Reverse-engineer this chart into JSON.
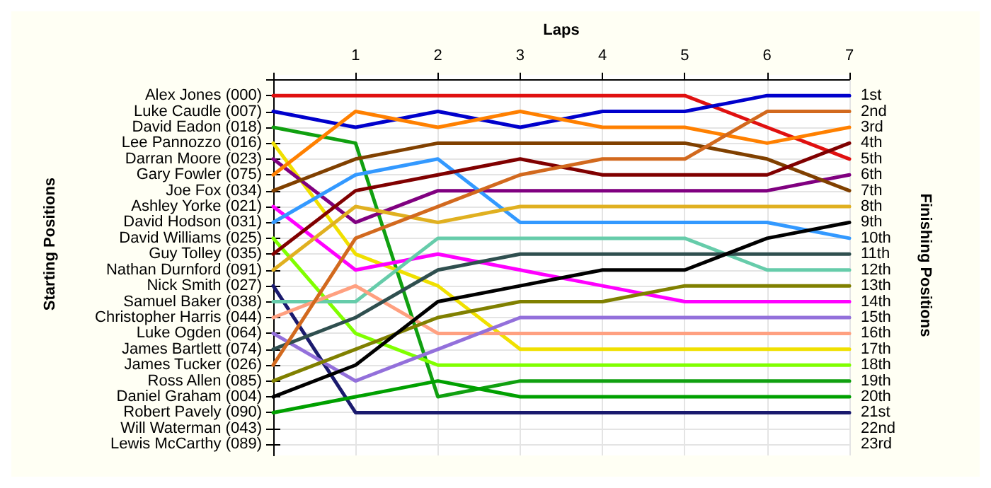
{
  "chart_data": {
    "type": "line",
    "xlabel": "Laps",
    "ylabel": "Finishing Positions",
    "annotations": [
      "Starting Positions",
      "Alex Jones (000)",
      "Luke Caudle (007)",
      "David Eadon (018)",
      "Lee Pannozzo (016)",
      "Darran Moore (023)",
      "Gary Fowler (075)",
      "Joe Fox (034)",
      "Ashley Yorke (021)",
      "David Hodson (031)",
      "David Williams (025)",
      "Guy Tolley (035)",
      "Nathan Durnford (091)",
      "Nick Smith (027)",
      "Samuel Baker (038)",
      "Christopher Harris (044)",
      "Luke Ogden (064)",
      "James Bartlett (074)",
      "James Tucker (026)",
      "Ross Allen (085)",
      "Daniel Graham (004)",
      "Robert Pavely (090)",
      "Will Waterman (043)",
      "Lewis McCarthy (089)"
    ],
    "x": [
      0,
      1,
      2,
      3,
      4,
      5,
      6,
      7
    ],
    "xlim": [
      0,
      7
    ],
    "xticks": [
      {
        "value": 0,
        "label": null
      },
      1,
      2,
      3,
      4,
      5,
      6,
      7
    ],
    "ylim": [
      23.7,
      -0.3
    ],
    "yticks": [
      {
        "value": 0,
        "label": null
      },
      {
        "value": 1,
        "label": "1st"
      },
      {
        "value": 2,
        "label": "2nd"
      },
      {
        "value": 3,
        "label": "3rd"
      },
      {
        "value": 4,
        "label": "4th"
      },
      {
        "value": 5,
        "label": "5th"
      },
      {
        "value": 6,
        "label": "6th"
      },
      {
        "value": 7,
        "label": "7th"
      },
      {
        "value": 8,
        "label": "8th"
      },
      {
        "value": 9,
        "label": "9th"
      },
      {
        "value": 10,
        "label": "10th"
      },
      {
        "value": 11,
        "label": "11th"
      },
      {
        "value": 12,
        "label": "12th"
      },
      {
        "value": 13,
        "label": "13th"
      },
      {
        "value": 14,
        "label": "14th"
      },
      {
        "value": 15,
        "label": "15th"
      },
      {
        "value": 16,
        "label": "16th"
      },
      {
        "value": 17,
        "label": "17th"
      },
      {
        "value": 18,
        "label": "18th"
      },
      {
        "value": 19,
        "label": "19th"
      },
      {
        "value": 20,
        "label": "20th"
      },
      {
        "value": 21,
        "label": "21st"
      },
      {
        "value": 22,
        "label": "22nd"
      },
      {
        "value": 23,
        "label": "23rd"
      }
    ],
    "grid": true,
    "marker": "none",
    "line_style": "solid",
    "series": [
      {
        "color": "#e01010",
        "values": [
          1,
          1,
          1,
          1,
          1,
          1,
          3,
          5
        ]
      },
      {
        "color": "#0000cc",
        "values": [
          2,
          3,
          2,
          3,
          2,
          2,
          1,
          1
        ]
      },
      {
        "color": "#10a010",
        "values": [
          3,
          4,
          20,
          19,
          19,
          19,
          19,
          19
        ]
      },
      {
        "color": "#f0e000",
        "values": [
          4,
          11,
          13,
          17,
          17,
          17,
          17,
          17
        ]
      },
      {
        "color": "#800080",
        "values": [
          5,
          9,
          7,
          7,
          7,
          7,
          7,
          6
        ]
      },
      {
        "color": "#ff8000",
        "values": [
          6,
          2,
          3,
          2,
          3,
          3,
          4,
          3
        ]
      },
      {
        "color": "#804000",
        "values": [
          7,
          5,
          4,
          4,
          4,
          4,
          5,
          7
        ]
      },
      {
        "color": "#ff00ff",
        "values": [
          8,
          12,
          11,
          12,
          13,
          14,
          14,
          14
        ]
      },
      {
        "color": "#3399ff",
        "values": [
          9,
          6,
          5,
          9,
          9,
          9,
          9,
          10
        ]
      },
      {
        "color": "#80ff00",
        "values": [
          10,
          16,
          18,
          18,
          18,
          18,
          18,
          18
        ]
      },
      {
        "color": "#800000",
        "values": [
          11,
          7,
          6,
          5,
          6,
          6,
          6,
          4
        ]
      },
      {
        "color": "#e0b020",
        "values": [
          12,
          8,
          9,
          8,
          8,
          8,
          8,
          8
        ]
      },
      {
        "color": "#1a1a6e",
        "values": [
          13,
          21,
          21,
          21,
          21,
          21,
          21,
          21
        ]
      },
      {
        "color": "#66ccaa",
        "values": [
          14,
          14,
          10,
          10,
          10,
          10,
          12,
          12
        ]
      },
      {
        "color": "#ffa080",
        "values": [
          15,
          13,
          16,
          16,
          16,
          16,
          16,
          16
        ]
      },
      {
        "color": "#9370db",
        "values": [
          16,
          19,
          17,
          15,
          15,
          15,
          15,
          15
        ]
      },
      {
        "color": "#2f4f4f",
        "values": [
          17,
          15,
          12,
          11,
          11,
          11,
          11,
          11
        ]
      },
      {
        "color": "#d2691e",
        "values": [
          18,
          10,
          8,
          6,
          5,
          5,
          2,
          2
        ]
      },
      {
        "color": "#808000",
        "values": [
          19,
          17,
          15,
          14,
          14,
          13,
          13,
          13
        ]
      },
      {
        "color": "#000000",
        "values": [
          20,
          18,
          14,
          13,
          12,
          12,
          10,
          9
        ]
      },
      {
        "color": "#00a000",
        "values": [
          21,
          20,
          19,
          20,
          20,
          20,
          20,
          20
        ]
      }
    ]
  }
}
